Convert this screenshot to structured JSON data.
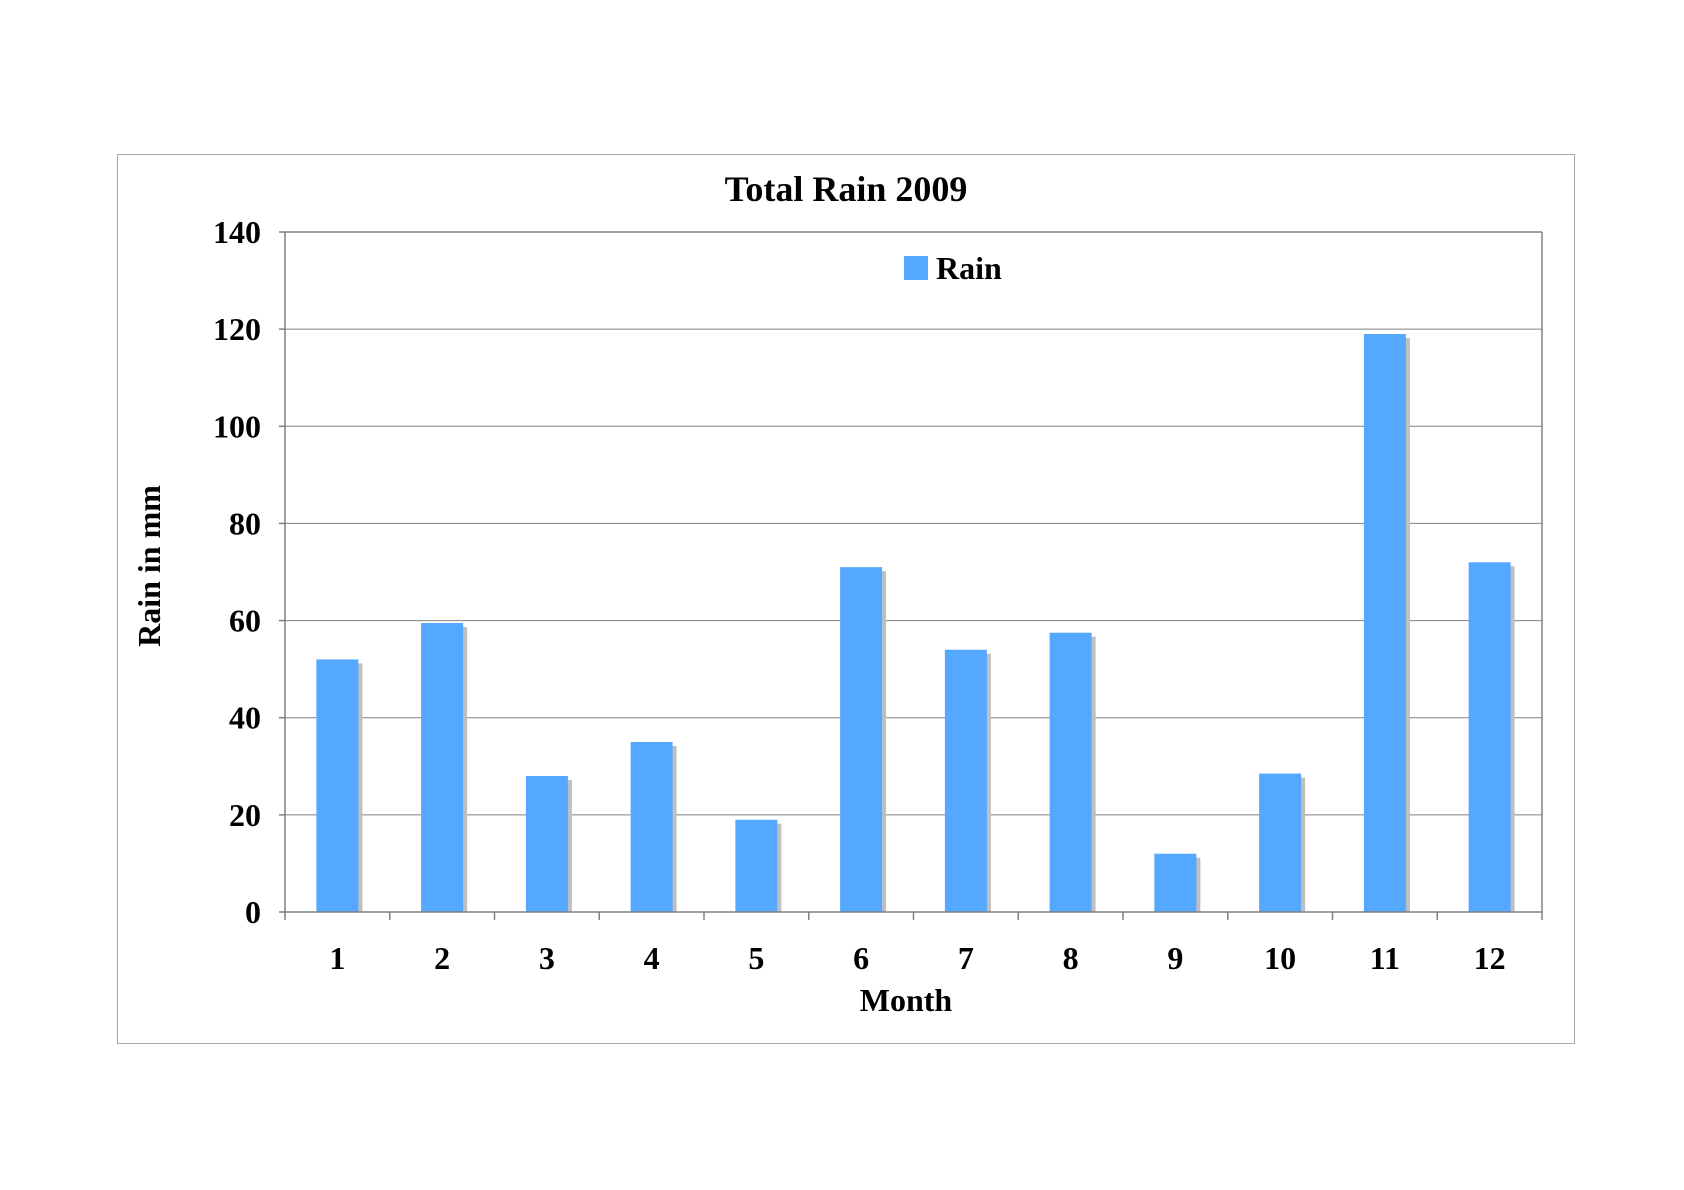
{
  "chart_data": {
    "type": "bar",
    "title": "Total Rain 2009",
    "xlabel": "Month",
    "ylabel": "Rain in mm",
    "categories": [
      "1",
      "2",
      "3",
      "4",
      "5",
      "6",
      "7",
      "8",
      "9",
      "10",
      "11",
      "12"
    ],
    "series": [
      {
        "name": "Rain",
        "color": "#55a8ff",
        "values": [
          52,
          59.5,
          28,
          35,
          19,
          71,
          54,
          57.5,
          12,
          28.5,
          119,
          72
        ]
      }
    ],
    "ylim": [
      0,
      140
    ],
    "yticks": [
      "0",
      "20",
      "40",
      "60",
      "80",
      "100",
      "120",
      "140"
    ],
    "ytick_values": [
      0,
      20,
      40,
      60,
      80,
      100,
      120,
      140
    ],
    "grid": true,
    "legend_position": "top-center",
    "colors": {
      "bar": "#55a8ff",
      "bar_shadow": "#bfbfbf",
      "gridline": "#808080",
      "axis": "#808080"
    }
  }
}
